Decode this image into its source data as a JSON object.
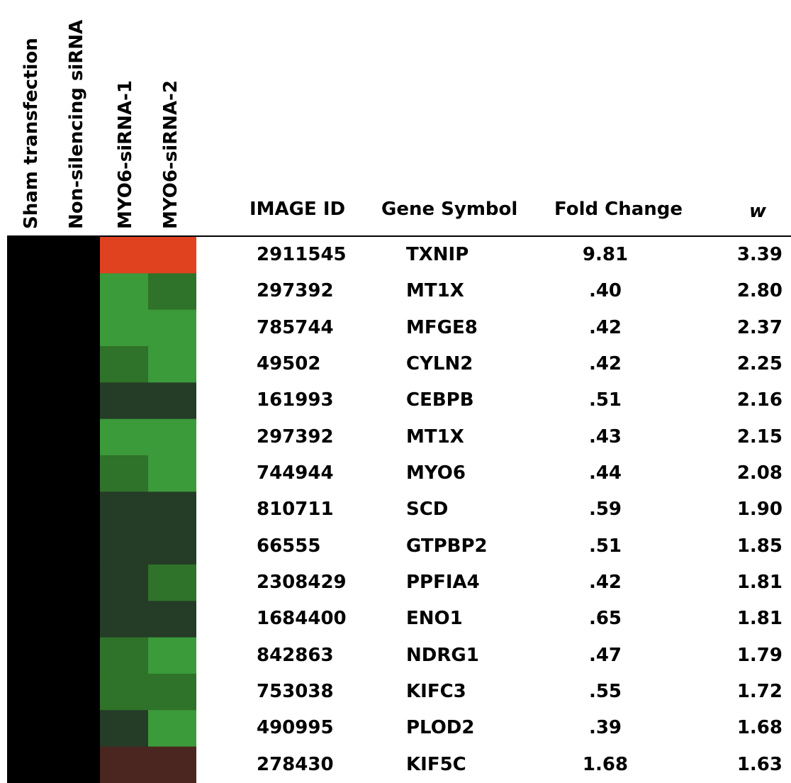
{
  "chart_data": {
    "type": "heatmap",
    "conditions": [
      "Sham transfection",
      "Non-silencing siRNA",
      "MYO6-siRNA-1",
      "MYO6-siRNA-2"
    ],
    "columns": {
      "image_id": "IMAGE ID",
      "gene_symbol": "Gene Symbol",
      "fold_change": "Fold Change",
      "w": "w"
    },
    "colors": {
      "baseline": "#000000",
      "strong_up": "#e0411f",
      "weak_up": "#4b2620",
      "strong_down": "#3b9a3a",
      "medium_down": "#2f7229",
      "weak_down": "#253c27"
    },
    "rows": [
      {
        "image_id": "2911545",
        "gene_symbol": "TXNIP",
        "fold_change": "9.81",
        "w": "3.39",
        "cells": [
          "baseline",
          "baseline",
          "strong_up",
          "strong_up"
        ]
      },
      {
        "image_id": "297392",
        "gene_symbol": "MT1X",
        "fold_change": ".40",
        "w": "2.80",
        "cells": [
          "baseline",
          "baseline",
          "strong_down",
          "medium_down"
        ]
      },
      {
        "image_id": "785744",
        "gene_symbol": "MFGE8",
        "fold_change": ".42",
        "w": "2.37",
        "cells": [
          "baseline",
          "baseline",
          "strong_down",
          "strong_down"
        ]
      },
      {
        "image_id": "49502",
        "gene_symbol": "CYLN2",
        "fold_change": ".42",
        "w": "2.25",
        "cells": [
          "baseline",
          "baseline",
          "medium_down",
          "strong_down"
        ]
      },
      {
        "image_id": "161993",
        "gene_symbol": "CEBPB",
        "fold_change": ".51",
        "w": "2.16",
        "cells": [
          "baseline",
          "baseline",
          "weak_down",
          "weak_down"
        ]
      },
      {
        "image_id": "297392",
        "gene_symbol": "MT1X",
        "fold_change": ".43",
        "w": "2.15",
        "cells": [
          "baseline",
          "baseline",
          "strong_down",
          "strong_down"
        ]
      },
      {
        "image_id": "744944",
        "gene_symbol": "MYO6",
        "fold_change": ".44",
        "w": "2.08",
        "cells": [
          "baseline",
          "baseline",
          "medium_down",
          "strong_down"
        ]
      },
      {
        "image_id": "810711",
        "gene_symbol": "SCD",
        "fold_change": ".59",
        "w": "1.90",
        "cells": [
          "baseline",
          "baseline",
          "weak_down",
          "weak_down"
        ]
      },
      {
        "image_id": "66555",
        "gene_symbol": "GTPBP2",
        "fold_change": ".51",
        "w": "1.85",
        "cells": [
          "baseline",
          "baseline",
          "weak_down",
          "weak_down"
        ]
      },
      {
        "image_id": "2308429",
        "gene_symbol": "PPFIA4",
        "fold_change": ".42",
        "w": "1.81",
        "cells": [
          "baseline",
          "baseline",
          "weak_down",
          "medium_down"
        ]
      },
      {
        "image_id": "1684400",
        "gene_symbol": "ENO1",
        "fold_change": ".65",
        "w": "1.81",
        "cells": [
          "baseline",
          "baseline",
          "weak_down",
          "weak_down"
        ]
      },
      {
        "image_id": "842863",
        "gene_symbol": "NDRG1",
        "fold_change": ".47",
        "w": "1.79",
        "cells": [
          "baseline",
          "baseline",
          "medium_down",
          "strong_down"
        ]
      },
      {
        "image_id": "753038",
        "gene_symbol": "KIFC3",
        "fold_change": ".55",
        "w": "1.72",
        "cells": [
          "baseline",
          "baseline",
          "medium_down",
          "medium_down"
        ]
      },
      {
        "image_id": "490995",
        "gene_symbol": "PLOD2",
        "fold_change": ".39",
        "w": "1.68",
        "cells": [
          "baseline",
          "baseline",
          "weak_down",
          "strong_down"
        ]
      },
      {
        "image_id": "278430",
        "gene_symbol": "KIF5C",
        "fold_change": "1.68",
        "w": "1.63",
        "cells": [
          "baseline",
          "baseline",
          "weak_up",
          "weak_up"
        ]
      }
    ]
  }
}
